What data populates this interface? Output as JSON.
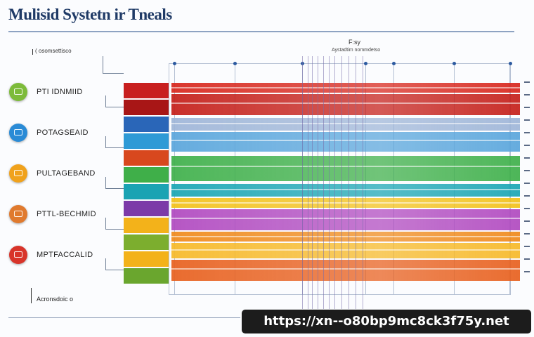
{
  "title": "Mulisid Systetn ir Tneals",
  "top_annotation": "( osomsettisco",
  "center_label": "F:sy",
  "center_sublabel": "Aystadtim nommdetso",
  "rows": [
    {
      "label": "PTI IDNMIID",
      "color": "#7dbb3a",
      "bar_colors": [
        "#b31b1b",
        "#a81414"
      ]
    },
    {
      "label": "POTAGSEAID",
      "color": "#2a8bd6",
      "bar_colors": [
        "#1f63b8",
        "#2c9ad8"
      ]
    },
    {
      "label": "PULTAGEBAND",
      "color": "#f0a21c",
      "bar_colors": [
        "#d84a1f",
        "#3fae49"
      ]
    },
    {
      "label": "PTTL-BECHMID",
      "color": "#e07a2e",
      "bar_colors": [
        "#17a3b3",
        "#7c3aa8"
      ]
    },
    {
      "label": "MPTFACCALID",
      "color": "#d8342a",
      "bar_colors": [
        "#f3b21a",
        "#7cae2e"
      ]
    }
  ],
  "bottom_annotation": "Acronsdoic o",
  "watermark": "https://xn--o80bp9mc8ck3f75y.net",
  "bands": [
    {
      "color": "#d8261c"
    },
    {
      "color": "#c51f1a"
    },
    {
      "color": "#9fb6d8"
    },
    {
      "color": "#5aa6dc"
    },
    {
      "color": "#3fb04a"
    },
    {
      "color": "#1aa6b4"
    },
    {
      "color": "#f3c21b"
    },
    {
      "color": "#b14ac0"
    },
    {
      "color": "#f08a1c"
    },
    {
      "color": "#f7b928"
    },
    {
      "color": "#e8601e"
    }
  ]
}
